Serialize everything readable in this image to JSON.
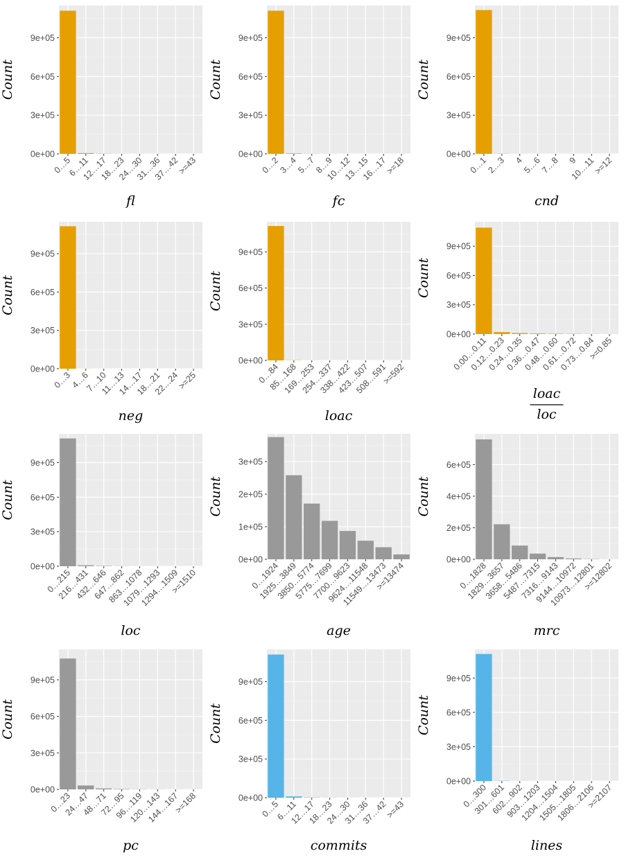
{
  "colors": {
    "orange": "#E69F00",
    "gray": "#999999",
    "blue": "#56B4E9"
  },
  "chart_data": [
    {
      "type": "bar",
      "xlabel": "fl",
      "ylabel": "Count",
      "color": "orange",
      "ylim": [
        0,
        1150000
      ],
      "yticks": [
        0,
        300000,
        600000,
        900000
      ],
      "ytick_labels": [
        "0e+00",
        "3e+05",
        "6e+05",
        "9e+05"
      ],
      "categories": [
        "0…5",
        "6…11",
        "12…17",
        "18…23",
        "24…30",
        "31…36",
        "37…42",
        ">=43"
      ],
      "values": [
        1110000,
        6000,
        1500,
        600,
        300,
        200,
        100,
        100
      ]
    },
    {
      "type": "bar",
      "xlabel": "fc",
      "ylabel": "Count",
      "color": "orange",
      "ylim": [
        0,
        1150000
      ],
      "yticks": [
        0,
        300000,
        600000,
        900000
      ],
      "ytick_labels": [
        "0e+00",
        "3e+05",
        "6e+05",
        "9e+05"
      ],
      "categories": [
        "0…2",
        "3…4",
        "5…7",
        "8…9",
        "10…12",
        "13…15",
        "16…17",
        ">=18"
      ],
      "values": [
        1110000,
        4000,
        1000,
        400,
        200,
        100,
        100,
        100
      ]
    },
    {
      "type": "bar",
      "xlabel": "cnd",
      "ylabel": "Count",
      "color": "orange",
      "ylim": [
        0,
        1150000
      ],
      "yticks": [
        0,
        300000,
        600000,
        900000
      ],
      "ytick_labels": [
        "0e+00",
        "3e+05",
        "6e+05",
        "9e+05"
      ],
      "categories": [
        "0…1",
        "2…3",
        "4",
        "5…6",
        "7…8",
        "9",
        "10…11",
        ">=12"
      ],
      "values": [
        1115000,
        1500,
        400,
        200,
        100,
        100,
        100,
        100
      ]
    },
    {
      "type": "bar",
      "xlabel": "neg",
      "ylabel": "Count",
      "color": "orange",
      "ylim": [
        0,
        1150000
      ],
      "yticks": [
        0,
        300000,
        600000,
        900000
      ],
      "ytick_labels": [
        "0e+00",
        "3e+05",
        "6e+05",
        "9e+05"
      ],
      "categories": [
        "0…3",
        "4…6",
        "7…10",
        "11…13",
        "14…17",
        "18…21",
        "22…24",
        ">=25"
      ],
      "values": [
        1115000,
        500,
        200,
        100,
        100,
        100,
        100,
        100
      ]
    },
    {
      "type": "bar",
      "xlabel": "loac",
      "ylabel": "Count",
      "color": "orange",
      "ylim": [
        0,
        1150000
      ],
      "yticks": [
        0,
        300000,
        600000,
        900000
      ],
      "ytick_labels": [
        "0e+00",
        "3e+05",
        "6e+05",
        "9e+05"
      ],
      "categories": [
        "0…84",
        "85…168",
        "169…253",
        "254…337",
        "338…422",
        "423…507",
        "508…591",
        ">=592"
      ],
      "values": [
        1115000,
        1500,
        400,
        200,
        100,
        100,
        100,
        100
      ]
    },
    {
      "type": "bar",
      "xlabel_num": "loac",
      "xlabel_den": "loc",
      "ylabel": "Count",
      "color": "orange",
      "ylim": [
        0,
        1150000
      ],
      "yticks": [
        0,
        300000,
        600000,
        900000
      ],
      "ytick_labels": [
        "0e+00",
        "3e+05",
        "6e+05",
        "9e+05"
      ],
      "categories": [
        "0.00…0.11",
        "0.12…0.23",
        "0.24…0.35",
        "0.36…0.47",
        "0.48…0.60",
        "0.61…0.72",
        "0.73…0.84",
        ">=0.85"
      ],
      "values": [
        1090000,
        20000,
        10000,
        6000,
        4000,
        2500,
        1500,
        1000
      ]
    },
    {
      "type": "bar",
      "xlabel": "loc",
      "ylabel": "Count",
      "color": "gray",
      "ylim": [
        0,
        1150000
      ],
      "yticks": [
        0,
        300000,
        600000,
        900000
      ],
      "ytick_labels": [
        "0e+00",
        "3e+05",
        "6e+05",
        "9e+05"
      ],
      "categories": [
        "0…215",
        "216…431",
        "432…646",
        "647…862",
        "863…1078",
        "1079…1293",
        "1294…1509",
        ">=1510"
      ],
      "values": [
        1110000,
        8000,
        2500,
        1000,
        500,
        300,
        200,
        100
      ]
    },
    {
      "type": "bar",
      "xlabel": "age",
      "ylabel": "Count",
      "color": "gray",
      "ylim": [
        0,
        385000
      ],
      "yticks": [
        0,
        100000,
        200000,
        300000
      ],
      "ytick_labels": [
        "0e+00",
        "1e+05",
        "2e+05",
        "3e+05"
      ],
      "categories": [
        "0…1924",
        "1925…3849",
        "3850…5774",
        "5775…7699",
        "7700…9623",
        "9624…11548",
        "11549…13473",
        ">=13474"
      ],
      "values": [
        375000,
        258000,
        171000,
        118000,
        87000,
        57000,
        37000,
        15000
      ]
    },
    {
      "type": "bar",
      "xlabel": "mrc",
      "ylabel": "Count",
      "color": "gray",
      "ylim": [
        0,
        795000
      ],
      "yticks": [
        0,
        200000,
        400000,
        600000
      ],
      "ytick_labels": [
        "0e+00",
        "2e+05",
        "4e+05",
        "6e+05"
      ],
      "categories": [
        "0…1828",
        "1829…3657",
        "3658…5486",
        "5487…7315",
        "7316…9143",
        "9144…10972",
        "10973…12801",
        ">=12802"
      ],
      "values": [
        760000,
        222000,
        87000,
        36000,
        14000,
        5000,
        1500,
        500
      ]
    },
    {
      "type": "bar",
      "xlabel": "pc",
      "ylabel": "Count",
      "color": "gray",
      "ylim": [
        0,
        1150000
      ],
      "yticks": [
        0,
        300000,
        600000,
        900000
      ],
      "ytick_labels": [
        "0e+00",
        "3e+05",
        "6e+05",
        "9e+05"
      ],
      "categories": [
        "0…23",
        "24…47",
        "48…71",
        "72…95",
        "96…119",
        "120…143",
        "144…167",
        ">=168"
      ],
      "values": [
        1075000,
        32000,
        8000,
        3000,
        1500,
        800,
        500,
        300
      ]
    },
    {
      "type": "bar",
      "xlabel": "commits",
      "ylabel": "Count",
      "color": "blue",
      "ylim": [
        0,
        1150000
      ],
      "yticks": [
        0,
        300000,
        600000,
        900000
      ],
      "ytick_labels": [
        "0e+00",
        "3e+05",
        "6e+05",
        "9e+05"
      ],
      "categories": [
        "0…5",
        "6…11",
        "12…17",
        "18…23",
        "24…30",
        "31…36",
        "37…42",
        ">=43"
      ],
      "values": [
        1110000,
        10000,
        2000,
        800,
        400,
        200,
        100,
        100
      ]
    },
    {
      "type": "bar",
      "xlabel": "lines",
      "ylabel": "Count",
      "color": "blue",
      "ylim": [
        0,
        1150000
      ],
      "yticks": [
        0,
        300000,
        600000,
        900000
      ],
      "ytick_labels": [
        "0e+00",
        "3e+05",
        "6e+05",
        "9e+05"
      ],
      "categories": [
        "0…300",
        "301…601",
        "602…902",
        "903…1203",
        "1204…1504",
        "1505…1805",
        "1806…2106",
        ">=2107"
      ],
      "values": [
        1110000,
        2000,
        600,
        300,
        200,
        100,
        100,
        100
      ]
    }
  ]
}
